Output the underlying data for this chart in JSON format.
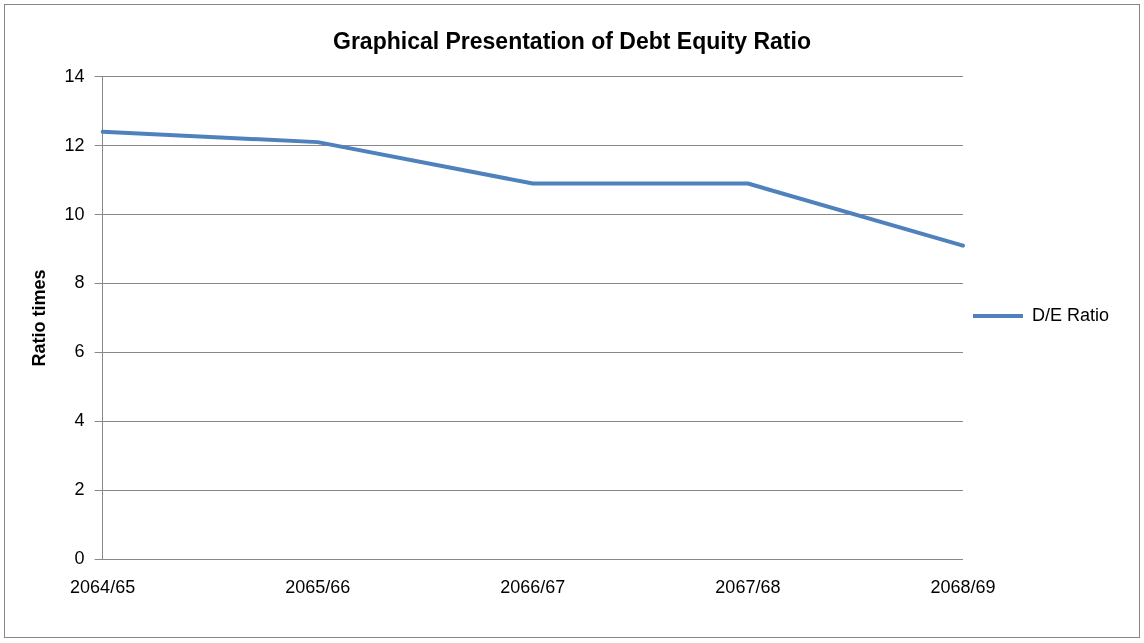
{
  "chart_data": {
    "type": "line",
    "title": "Graphical Presentation of Debt Equity Ratio",
    "ylabel": "Ratio times",
    "categories": [
      "2064/65",
      "2065/66",
      "2066/67",
      "2067/68",
      "2068/69"
    ],
    "series": [
      {
        "name": "D/E Ratio",
        "color": "#4f81bd",
        "values": [
          12.4,
          12.1,
          10.9,
          10.9,
          9.1
        ]
      }
    ],
    "ylim": [
      0,
      14
    ],
    "yticks": [
      0,
      2,
      4,
      6,
      8,
      10,
      12,
      14
    ],
    "grid": "y",
    "legend": "right",
    "marker": "none",
    "line_style": "solid"
  }
}
